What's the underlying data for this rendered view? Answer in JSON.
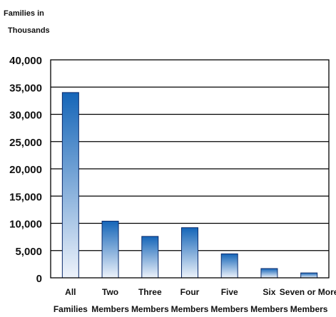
{
  "chart_data": {
    "type": "bar",
    "title": "",
    "ylabel": [
      "Families in",
      "Thousands"
    ],
    "xlabel": "",
    "categories": [
      [
        "All",
        "Families"
      ],
      [
        "Two",
        "Members"
      ],
      [
        "Three",
        "Members"
      ],
      [
        "Four",
        "Members"
      ],
      [
        "Five",
        "Members"
      ],
      [
        "Six",
        "Members"
      ],
      [
        "Seven or More",
        "Members"
      ]
    ],
    "values": [
      34000,
      10400,
      7600,
      9200,
      4400,
      1700,
      900
    ],
    "ylim": [
      0,
      40000
    ],
    "yticks": [
      0,
      5000,
      10000,
      15000,
      20000,
      25000,
      30000,
      35000,
      40000
    ],
    "ytick_labels": [
      "0",
      "5,000",
      "10,000",
      "15,000",
      "20,000",
      "25,000",
      "30,000",
      "35,000",
      "40,000"
    ],
    "grid": true,
    "legend": "none",
    "colors": {
      "bar_top": "#1565b8",
      "bar_bottom": "#eef3fb",
      "bar_edge": "#0a2a6b",
      "axis": "#000000",
      "text": "#111111"
    }
  }
}
